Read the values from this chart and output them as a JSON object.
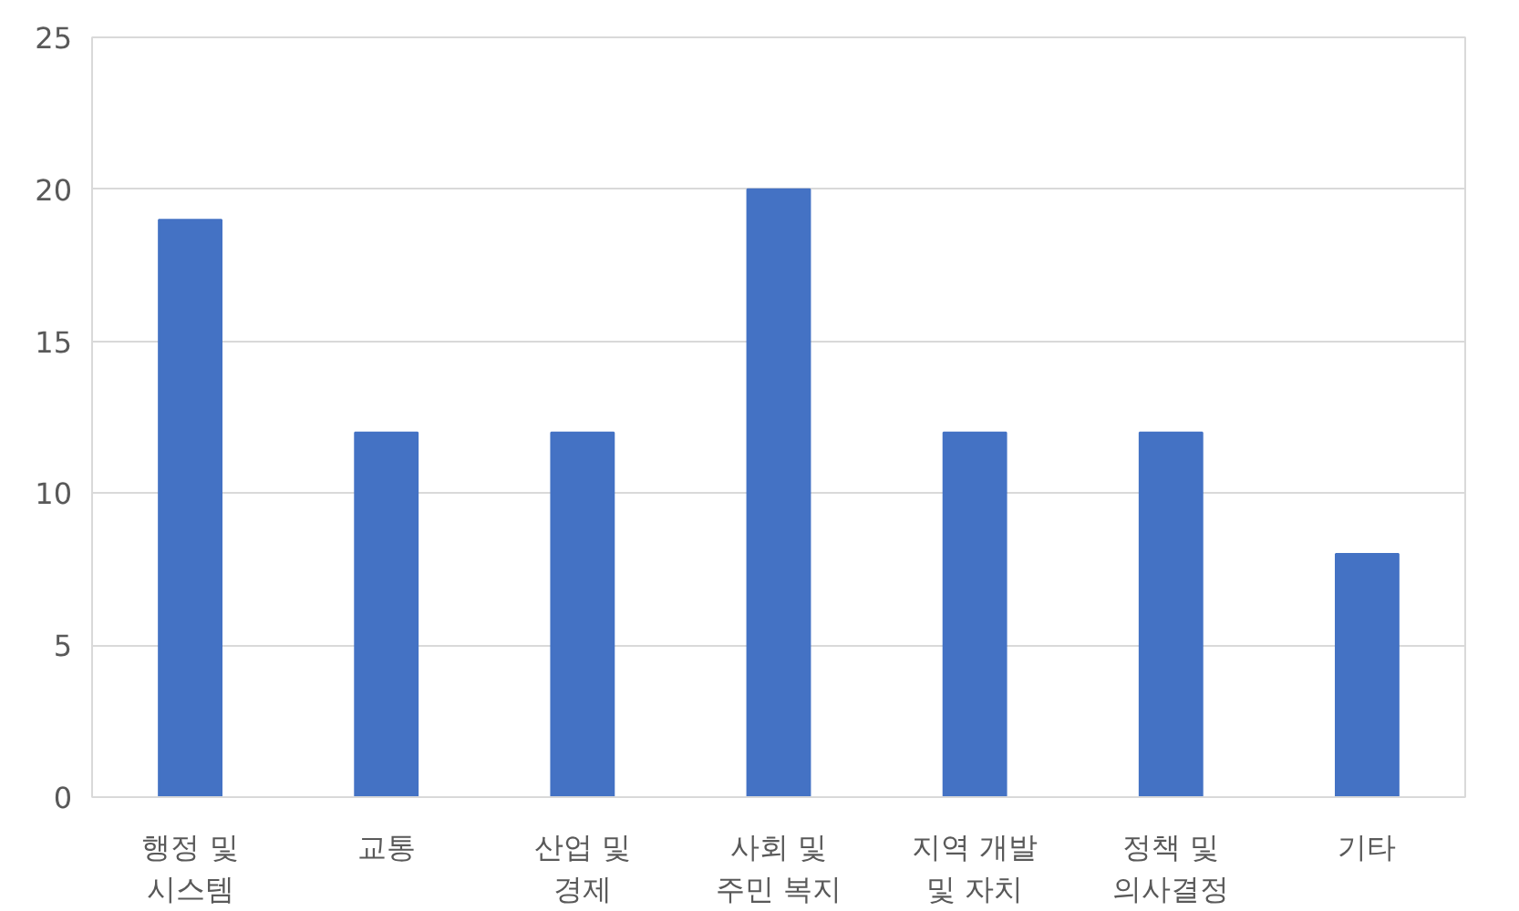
{
  "chart_data": {
    "type": "bar",
    "categories": [
      "행정 및\n시스템",
      "교통",
      "산업 및\n경제",
      "사회 및\n주민 복지",
      "지역 개발\n및 자치",
      "정책 및\n의사결정",
      "기타"
    ],
    "values": [
      19,
      12,
      12,
      20,
      12,
      12,
      8
    ],
    "color": "#4472c4",
    "ylim": [
      0,
      25
    ],
    "yticks": [
      0,
      5,
      10,
      15,
      20,
      25
    ],
    "grid": "y"
  }
}
